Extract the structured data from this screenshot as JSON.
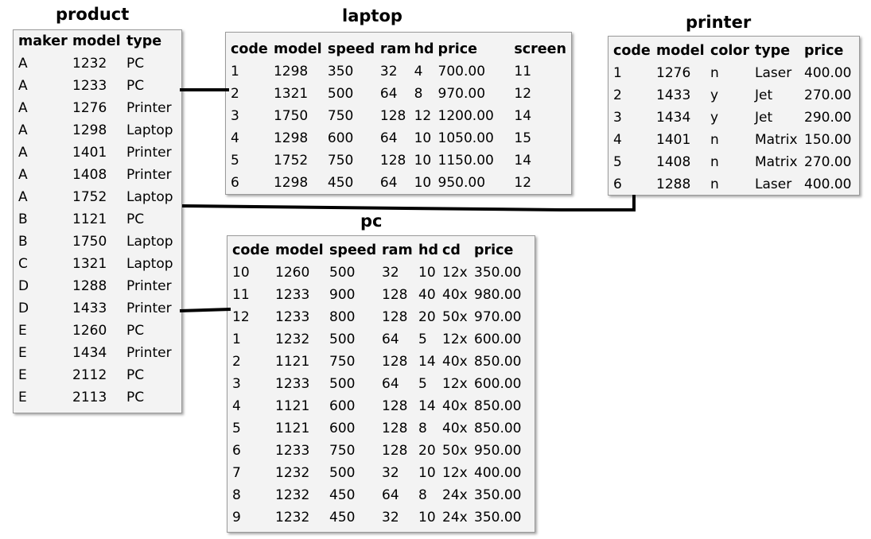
{
  "tables": {
    "product": {
      "title": "product",
      "columns": [
        "maker",
        "model",
        "type"
      ],
      "rows": [
        [
          "A",
          "1232",
          "PC"
        ],
        [
          "A",
          "1233",
          "PC"
        ],
        [
          "A",
          "1276",
          "Printer"
        ],
        [
          "A",
          "1298",
          "Laptop"
        ],
        [
          "A",
          "1401",
          "Printer"
        ],
        [
          "A",
          "1408",
          "Printer"
        ],
        [
          "A",
          "1752",
          "Laptop"
        ],
        [
          "B",
          "1121",
          "PC"
        ],
        [
          "B",
          "1750",
          "Laptop"
        ],
        [
          "C",
          "1321",
          "Laptop"
        ],
        [
          "D",
          "1288",
          "Printer"
        ],
        [
          "D",
          "1433",
          "Printer"
        ],
        [
          "E",
          "1260",
          "PC"
        ],
        [
          "E",
          "1434",
          "Printer"
        ],
        [
          "E",
          "2112",
          "PC"
        ],
        [
          "E",
          "2113",
          "PC"
        ]
      ]
    },
    "laptop": {
      "title": "laptop",
      "columns": [
        "code",
        "model",
        "speed",
        "ram",
        "hd",
        "price",
        "screen"
      ],
      "rows": [
        [
          "1",
          "1298",
          "350",
          "32",
          "4",
          "700.00",
          "11"
        ],
        [
          "2",
          "1321",
          "500",
          "64",
          "8",
          "970.00",
          "12"
        ],
        [
          "3",
          "1750",
          "750",
          "128",
          "12",
          "1200.00",
          "14"
        ],
        [
          "4",
          "1298",
          "600",
          "64",
          "10",
          "1050.00",
          "15"
        ],
        [
          "5",
          "1752",
          "750",
          "128",
          "10",
          "1150.00",
          "14"
        ],
        [
          "6",
          "1298",
          "450",
          "64",
          "10",
          "950.00",
          "12"
        ]
      ]
    },
    "printer": {
      "title": "printer",
      "columns": [
        "code",
        "model",
        "color",
        "type",
        "price"
      ],
      "rows": [
        [
          "1",
          "1276",
          "n",
          "Laser",
          "400.00"
        ],
        [
          "2",
          "1433",
          "y",
          "Jet",
          "270.00"
        ],
        [
          "3",
          "1434",
          "y",
          "Jet",
          "290.00"
        ],
        [
          "4",
          "1401",
          "n",
          "Matrix",
          "150.00"
        ],
        [
          "5",
          "1408",
          "n",
          "Matrix",
          "270.00"
        ],
        [
          "6",
          "1288",
          "n",
          "Laser",
          "400.00"
        ]
      ]
    },
    "pc": {
      "title": "pc",
      "columns": [
        "code",
        "model",
        "speed",
        "ram",
        "hd",
        "cd",
        "price"
      ],
      "rows": [
        [
          "10",
          "1260",
          "500",
          "32",
          "10",
          "12x",
          "350.00"
        ],
        [
          "11",
          "1233",
          "900",
          "128",
          "40",
          "40x",
          "980.00"
        ],
        [
          "12",
          "1233",
          "800",
          "128",
          "20",
          "50x",
          "970.00"
        ],
        [
          "1",
          "1232",
          "500",
          "64",
          "5",
          "12x",
          "600.00"
        ],
        [
          "2",
          "1121",
          "750",
          "128",
          "14",
          "40x",
          "850.00"
        ],
        [
          "3",
          "1233",
          "500",
          "64",
          "5",
          "12x",
          "600.00"
        ],
        [
          "4",
          "1121",
          "600",
          "128",
          "14",
          "40x",
          "850.00"
        ],
        [
          "5",
          "1121",
          "600",
          "128",
          "8",
          "40x",
          "850.00"
        ],
        [
          "6",
          "1233",
          "750",
          "128",
          "20",
          "50x",
          "950.00"
        ],
        [
          "7",
          "1232",
          "500",
          "32",
          "10",
          "12x",
          "400.00"
        ],
        [
          "8",
          "1232",
          "450",
          "64",
          "8",
          "24x",
          "350.00"
        ],
        [
          "9",
          "1232",
          "450",
          "32",
          "10",
          "24x",
          "350.00"
        ]
      ]
    }
  },
  "colors": {
    "panel_background": "#f3f3f3",
    "panel_border": "#9a9a9a",
    "connector": "#000000"
  }
}
